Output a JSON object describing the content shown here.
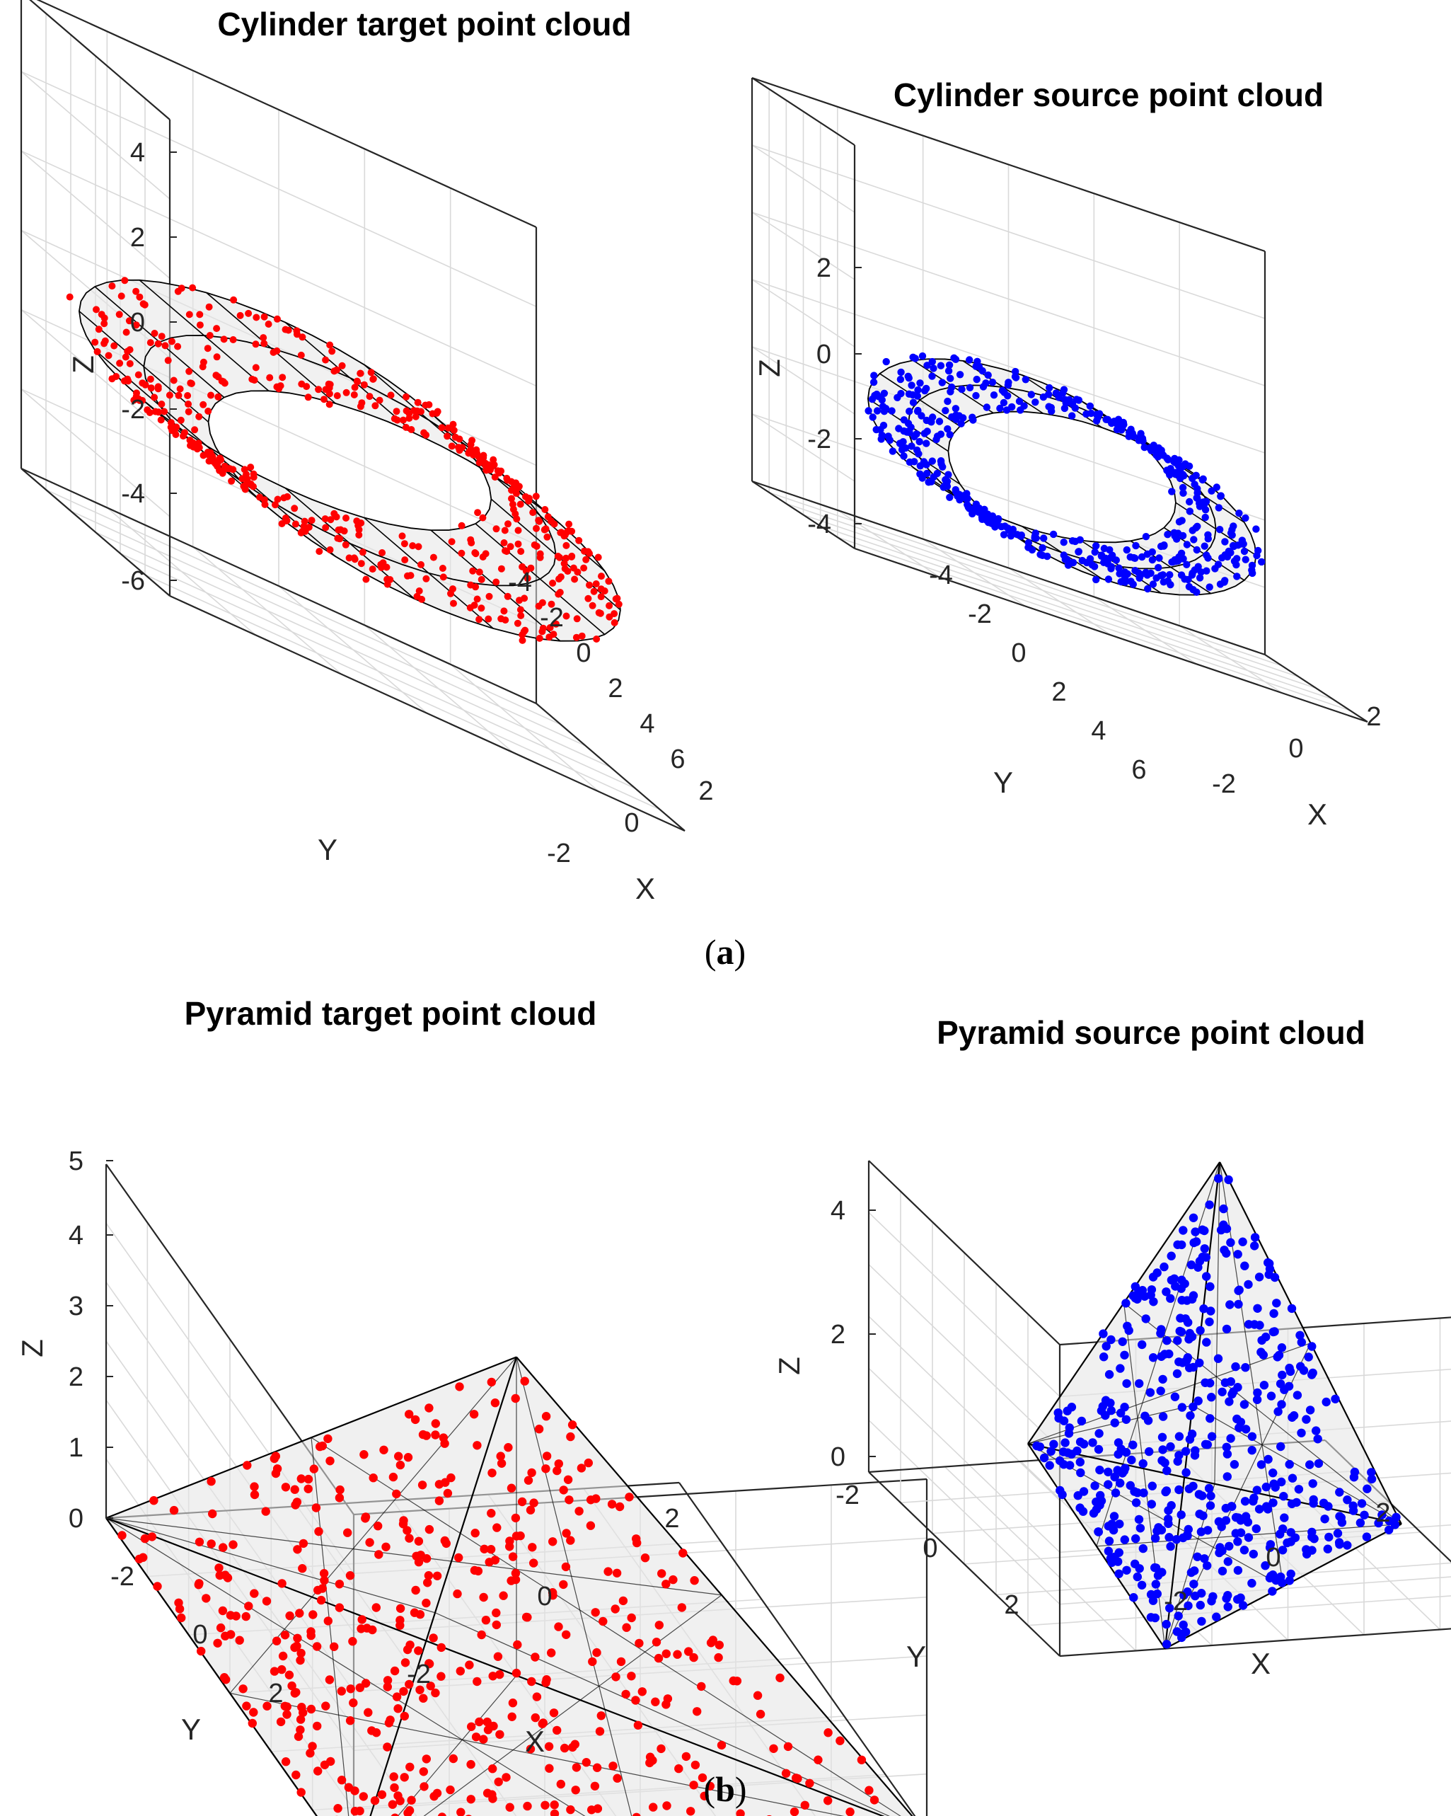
{
  "figure": {
    "panel_a_caption": {
      "open": "(",
      "letter": "a",
      "close": ")"
    },
    "panel_b_caption": {
      "open": "(",
      "letter": "b",
      "close": ")"
    }
  },
  "colors": {
    "target": "#ff0000",
    "source": "#0000ff",
    "wire": "#000000",
    "surface": "#e6e6e6"
  },
  "chart_data": [
    {
      "id": "cylinder-target",
      "type": "scatter",
      "variant": "3d-scatter-with-wireframe-surface",
      "title": "Cylinder target point cloud",
      "xlabel": "X",
      "ylabel": "Y",
      "zlabel": "Z",
      "xticks": [
        "-2",
        "0",
        "2"
      ],
      "yticks": [
        "-4",
        "-2",
        "0",
        "2",
        "4",
        "6"
      ],
      "zticks": [
        "-6",
        "-4",
        "-2",
        "0",
        "2",
        "4"
      ],
      "xlim": [
        -2.5,
        2.5
      ],
      "ylim": [
        -5,
        6.5
      ],
      "zlim": [
        -6.5,
        5
      ],
      "grid": true,
      "shape": "cylinder",
      "shape_params": {
        "radius": 2,
        "axis": "y",
        "center_x": 0,
        "center_z": -2,
        "y_range": [
          -4,
          6
        ]
      },
      "point_color": "red",
      "point_count_approx": 500
    },
    {
      "id": "cylinder-source",
      "type": "scatter",
      "variant": "3d-scatter-with-wireframe-surface",
      "title": "Cylinder source point cloud",
      "xlabel": "X",
      "ylabel": "Y",
      "zlabel": "Z",
      "xticks": [
        "-2",
        "0",
        "2"
      ],
      "yticks": [
        "-4",
        "-2",
        "0",
        "2",
        "4",
        "6"
      ],
      "zticks": [
        "-4",
        "-2",
        "0",
        "2"
      ],
      "xlim": [
        -2.5,
        2.5
      ],
      "ylim": [
        -5,
        6.5
      ],
      "zlim": [
        -4.5,
        3.5
      ],
      "grid": true,
      "shape": "cylinder",
      "shape_params": {
        "radius": 1.5,
        "axis": "y",
        "center_x": 0,
        "center_z": -2,
        "y_range": [
          -4,
          5
        ]
      },
      "point_color": "blue",
      "point_count_approx": 500
    },
    {
      "id": "pyramid-target",
      "type": "scatter",
      "variant": "3d-scatter-with-wireframe-surface",
      "title": "Pyramid target point cloud",
      "xlabel": "X",
      "ylabel": "Y",
      "zlabel": "Z",
      "xticks": [
        "-2",
        "0",
        "2"
      ],
      "yticks": [
        "-2",
        "0",
        "2"
      ],
      "zticks": [
        "0",
        "1",
        "2",
        "3",
        "4",
        "5"
      ],
      "xlim": [
        -2.5,
        2.5
      ],
      "ylim": [
        -2.5,
        2.5
      ],
      "zlim": [
        0,
        5
      ],
      "grid": true,
      "shape": "tetrahedron",
      "shape_params": {
        "vertices": [
          [
            -2.5,
            2.5,
            0
          ],
          [
            2.5,
            2.5,
            0
          ],
          [
            -2.5,
            -2.5,
            0
          ],
          [
            0,
            0,
            4.5
          ]
        ]
      },
      "point_color": "red",
      "point_count_approx": 500
    },
    {
      "id": "pyramid-source",
      "type": "scatter",
      "variant": "3d-scatter-with-wireframe-surface",
      "title": "Pyramid source point cloud",
      "xlabel": "X",
      "ylabel": "Y",
      "zlabel": "Z",
      "xticks": [
        "-2",
        "0",
        "2"
      ],
      "yticks": [
        "-2",
        "0",
        "2"
      ],
      "zticks": [
        "0",
        "2",
        "4"
      ],
      "xlim": [
        -3,
        3.5
      ],
      "ylim": [
        -3,
        3
      ],
      "zlim": [
        -1.5,
        4.5
      ],
      "grid": true,
      "shape": "tetrahedron",
      "shape_params": {
        "vertices": [
          [
            -3,
            2,
            2
          ],
          [
            -1.5,
            3,
            -1.5
          ],
          [
            3,
            0.5,
            -1
          ],
          [
            2,
            -3,
            4
          ]
        ]
      },
      "point_color": "blue",
      "point_count_approx": 500
    }
  ]
}
